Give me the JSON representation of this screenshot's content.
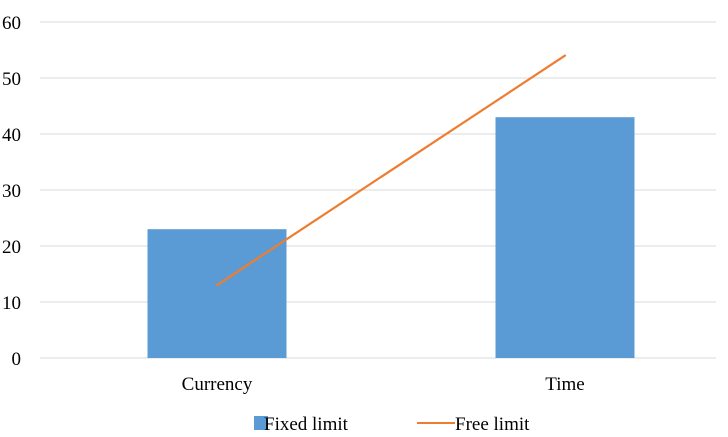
{
  "chart_data": {
    "type": "bar",
    "categories": [
      "Currency",
      "Time"
    ],
    "ylim": [
      0,
      60
    ],
    "yticks": [
      0,
      10,
      20,
      30,
      40,
      50,
      60
    ],
    "ytick_labels": [
      "0",
      "10",
      "20",
      "30",
      "40",
      "50",
      "60"
    ],
    "grid": true,
    "legend_position": "bottom",
    "series": [
      {
        "name": "Fixed limit",
        "type": "bar",
        "values": [
          23,
          43
        ],
        "color": "#5b9bd5"
      },
      {
        "name": "Free limit",
        "type": "line",
        "values": [
          13,
          54
        ],
        "color": "#ed7d31"
      }
    ]
  }
}
